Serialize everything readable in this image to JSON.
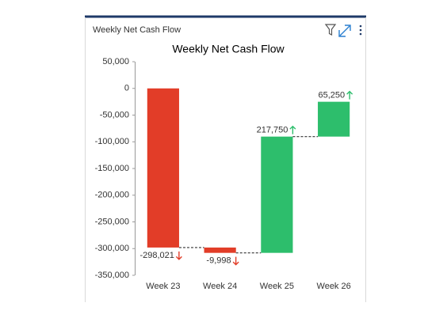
{
  "header": {
    "title": "Weekly Net Cash Flow"
  },
  "chart_data": {
    "type": "waterfall",
    "title": "Weekly Net Cash Flow",
    "categories": [
      "Week 23",
      "Week 24",
      "Week 25",
      "Week 26"
    ],
    "values": [
      -298021,
      -9998,
      217750,
      65250
    ],
    "value_labels": [
      "-298,021",
      "-9,998",
      "217,750",
      "65,250"
    ],
    "increase_color": "#2dbe6c",
    "decrease_color": "#e23d28",
    "ylim": [
      -350000,
      50000
    ],
    "yticks": [
      {
        "value": 50000,
        "label": "50,000"
      },
      0,
      {
        "value": -50000,
        "label": "-50,000"
      },
      {
        "value": -100000,
        "label": "-100,000"
      },
      {
        "value": -150000,
        "label": "-150,000"
      },
      {
        "value": -200000,
        "label": "-200,000"
      },
      {
        "value": -250000,
        "label": "-250,000"
      },
      {
        "value": -300000,
        "label": "-300,000"
      },
      {
        "value": -350000,
        "label": "-350,000"
      }
    ]
  }
}
